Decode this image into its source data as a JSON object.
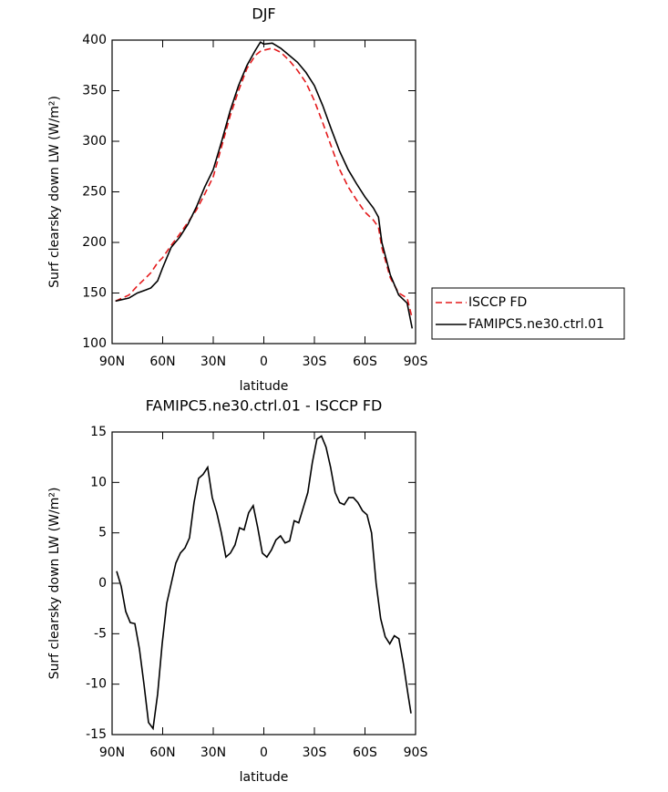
{
  "chart_data": [
    {
      "type": "line",
      "title": "DJF",
      "xlabel": "latitude",
      "ylabel": "Surf clearsky down LW (W/m²)",
      "x": [
        88,
        80,
        75,
        70,
        67,
        63,
        60,
        55,
        50,
        45,
        40,
        35,
        30,
        25,
        20,
        15,
        10,
        5,
        2,
        0,
        -5,
        -10,
        -15,
        -20,
        -25,
        -30,
        -35,
        -40,
        -45,
        -50,
        -55,
        -60,
        -65,
        -68,
        -70,
        -75,
        -80,
        -85,
        -88
      ],
      "series": [
        {
          "name": "ISCCP FD",
          "color": "#e41a1c",
          "dashed": true,
          "values": [
            142,
            148,
            157,
            165,
            170,
            180,
            185,
            197,
            208,
            220,
            232,
            248,
            265,
            295,
            325,
            350,
            372,
            385,
            389,
            390,
            392,
            388,
            380,
            370,
            358,
            340,
            318,
            295,
            272,
            255,
            242,
            230,
            222,
            215,
            195,
            165,
            150,
            145,
            125
          ]
        },
        {
          "name": "FAMIPC5.ne30.ctrl.01",
          "color": "#000000",
          "dashed": false,
          "values": [
            142,
            145,
            150,
            153,
            155,
            162,
            175,
            195,
            205,
            218,
            235,
            255,
            272,
            300,
            330,
            355,
            375,
            390,
            398,
            396,
            397,
            392,
            385,
            378,
            368,
            355,
            335,
            312,
            290,
            272,
            258,
            245,
            234,
            225,
            200,
            168,
            148,
            140,
            115
          ]
        }
      ],
      "xlim": [
        90,
        -90
      ],
      "xticks": [
        {
          "value": 90,
          "label": "90N"
        },
        {
          "value": 60,
          "label": "60N"
        },
        {
          "value": 30,
          "label": "30N"
        },
        0,
        {
          "value": -30,
          "label": "30S"
        },
        {
          "value": -60,
          "label": "60S"
        },
        {
          "value": -90,
          "label": "90S"
        }
      ],
      "ylim": [
        100,
        400
      ],
      "yticks": [
        100,
        150,
        200,
        250,
        300,
        350,
        400
      ],
      "legend": "right"
    },
    {
      "type": "line",
      "title": "FAMIPC5.ne30.ctrl.01 - ISCCP FD",
      "xlabel": "latitude",
      "ylabel": "Surf clearsky down LW (W/m²)",
      "x": [
        87.3,
        84.6,
        81.9,
        79.2,
        76.5,
        73.8,
        71.1,
        68.4,
        65.7,
        63.0,
        60.3,
        57.6,
        54.9,
        52.2,
        49.5,
        46.8,
        44.1,
        41.4,
        38.7,
        36.0,
        33.3,
        30.6,
        27.9,
        25.2,
        22.5,
        19.8,
        17.1,
        14.4,
        11.7,
        9.0,
        6.3,
        3.6,
        0.9,
        -1.8,
        -4.5,
        -7.2,
        -9.9,
        -12.6,
        -15.3,
        -18.0,
        -20.7,
        -23.4,
        -26.1,
        -28.8,
        -31.5,
        -34.2,
        -36.9,
        -39.6,
        -42.3,
        -45.0,
        -47.7,
        -50.4,
        -53.1,
        -55.8,
        -58.5,
        -61.2,
        -63.9,
        -66.6,
        -69.3,
        -72.0,
        -74.7,
        -77.4,
        -80.1,
        -82.8,
        -85.5,
        -87.3
      ],
      "color": "#000000",
      "values": [
        1.2,
        -0.3,
        -2.8,
        -3.9,
        -4,
        -6.5,
        -10,
        -13.8,
        -14.4,
        -11,
        -6,
        -2,
        0,
        2,
        3,
        3.5,
        4.5,
        8,
        10.4,
        10.8,
        11.5,
        8.5,
        7,
        5,
        2.6,
        3,
        3.8,
        5.5,
        5.3,
        7,
        7.7,
        5.5,
        3,
        2.6,
        3.3,
        4.3,
        4.7,
        4,
        4.2,
        6.2,
        6,
        7.5,
        9,
        12,
        14.3,
        14.6,
        13.5,
        11.5,
        9,
        8,
        7.8,
        8.5,
        8.5,
        8,
        7.2,
        6.8,
        5,
        0,
        -3.5,
        -5.3,
        -6,
        -5.2,
        -5.5,
        -8,
        -11,
        -12.9
      ],
      "xlim": [
        90,
        -90
      ],
      "xticks": [
        {
          "value": 90,
          "label": "90N"
        },
        {
          "value": 60,
          "label": "60N"
        },
        {
          "value": 30,
          "label": "30N"
        },
        0,
        {
          "value": -30,
          "label": "30S"
        },
        {
          "value": -60,
          "label": "60S"
        },
        {
          "value": -90,
          "label": "90S"
        }
      ],
      "ylim": [
        -15,
        15
      ],
      "yticks": [
        -15,
        -10,
        -5,
        0,
        5,
        10,
        15
      ]
    }
  ]
}
